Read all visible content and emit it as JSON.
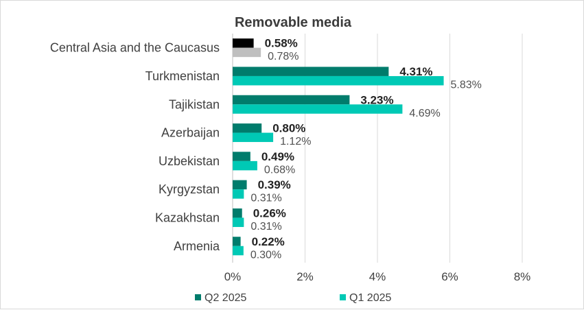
{
  "chart_data": {
    "type": "bar",
    "orientation": "horizontal",
    "title": "Removable media",
    "categories": [
      "Central Asia and the Caucasus",
      "Turkmenistan",
      "Tajikistan",
      "Azerbaijan",
      "Uzbekistan",
      "Kyrgyzstan",
      "Kazakhstan",
      "Armenia"
    ],
    "series": [
      {
        "name": "Q2 2025",
        "color": "#007c6c",
        "values": [
          0.58,
          4.31,
          3.23,
          0.8,
          0.49,
          0.39,
          0.26,
          0.22
        ],
        "labels": [
          "0.58%",
          "4.31%",
          "3.23%",
          "0.80%",
          "0.49%",
          "0.39%",
          "0.26%",
          "0.22%"
        ]
      },
      {
        "name": "Q1 2025",
        "color": "#00c9b5",
        "values": [
          0.78,
          5.83,
          4.69,
          1.12,
          0.68,
          0.31,
          0.31,
          0.3
        ],
        "labels": [
          "0.78%",
          "5.83%",
          "4.69%",
          "1.12%",
          "0.68%",
          "0.31%",
          "0.31%",
          "0.30%"
        ]
      }
    ],
    "highlight": {
      "category": "Central Asia and the Caucasus",
      "colors": [
        "#000000",
        "#bfbfbf"
      ]
    },
    "xlim": [
      0,
      8
    ],
    "xticks": [
      "0%",
      "2%",
      "4%",
      "6%",
      "8%"
    ],
    "grid": true,
    "legend_position": "bottom"
  }
}
